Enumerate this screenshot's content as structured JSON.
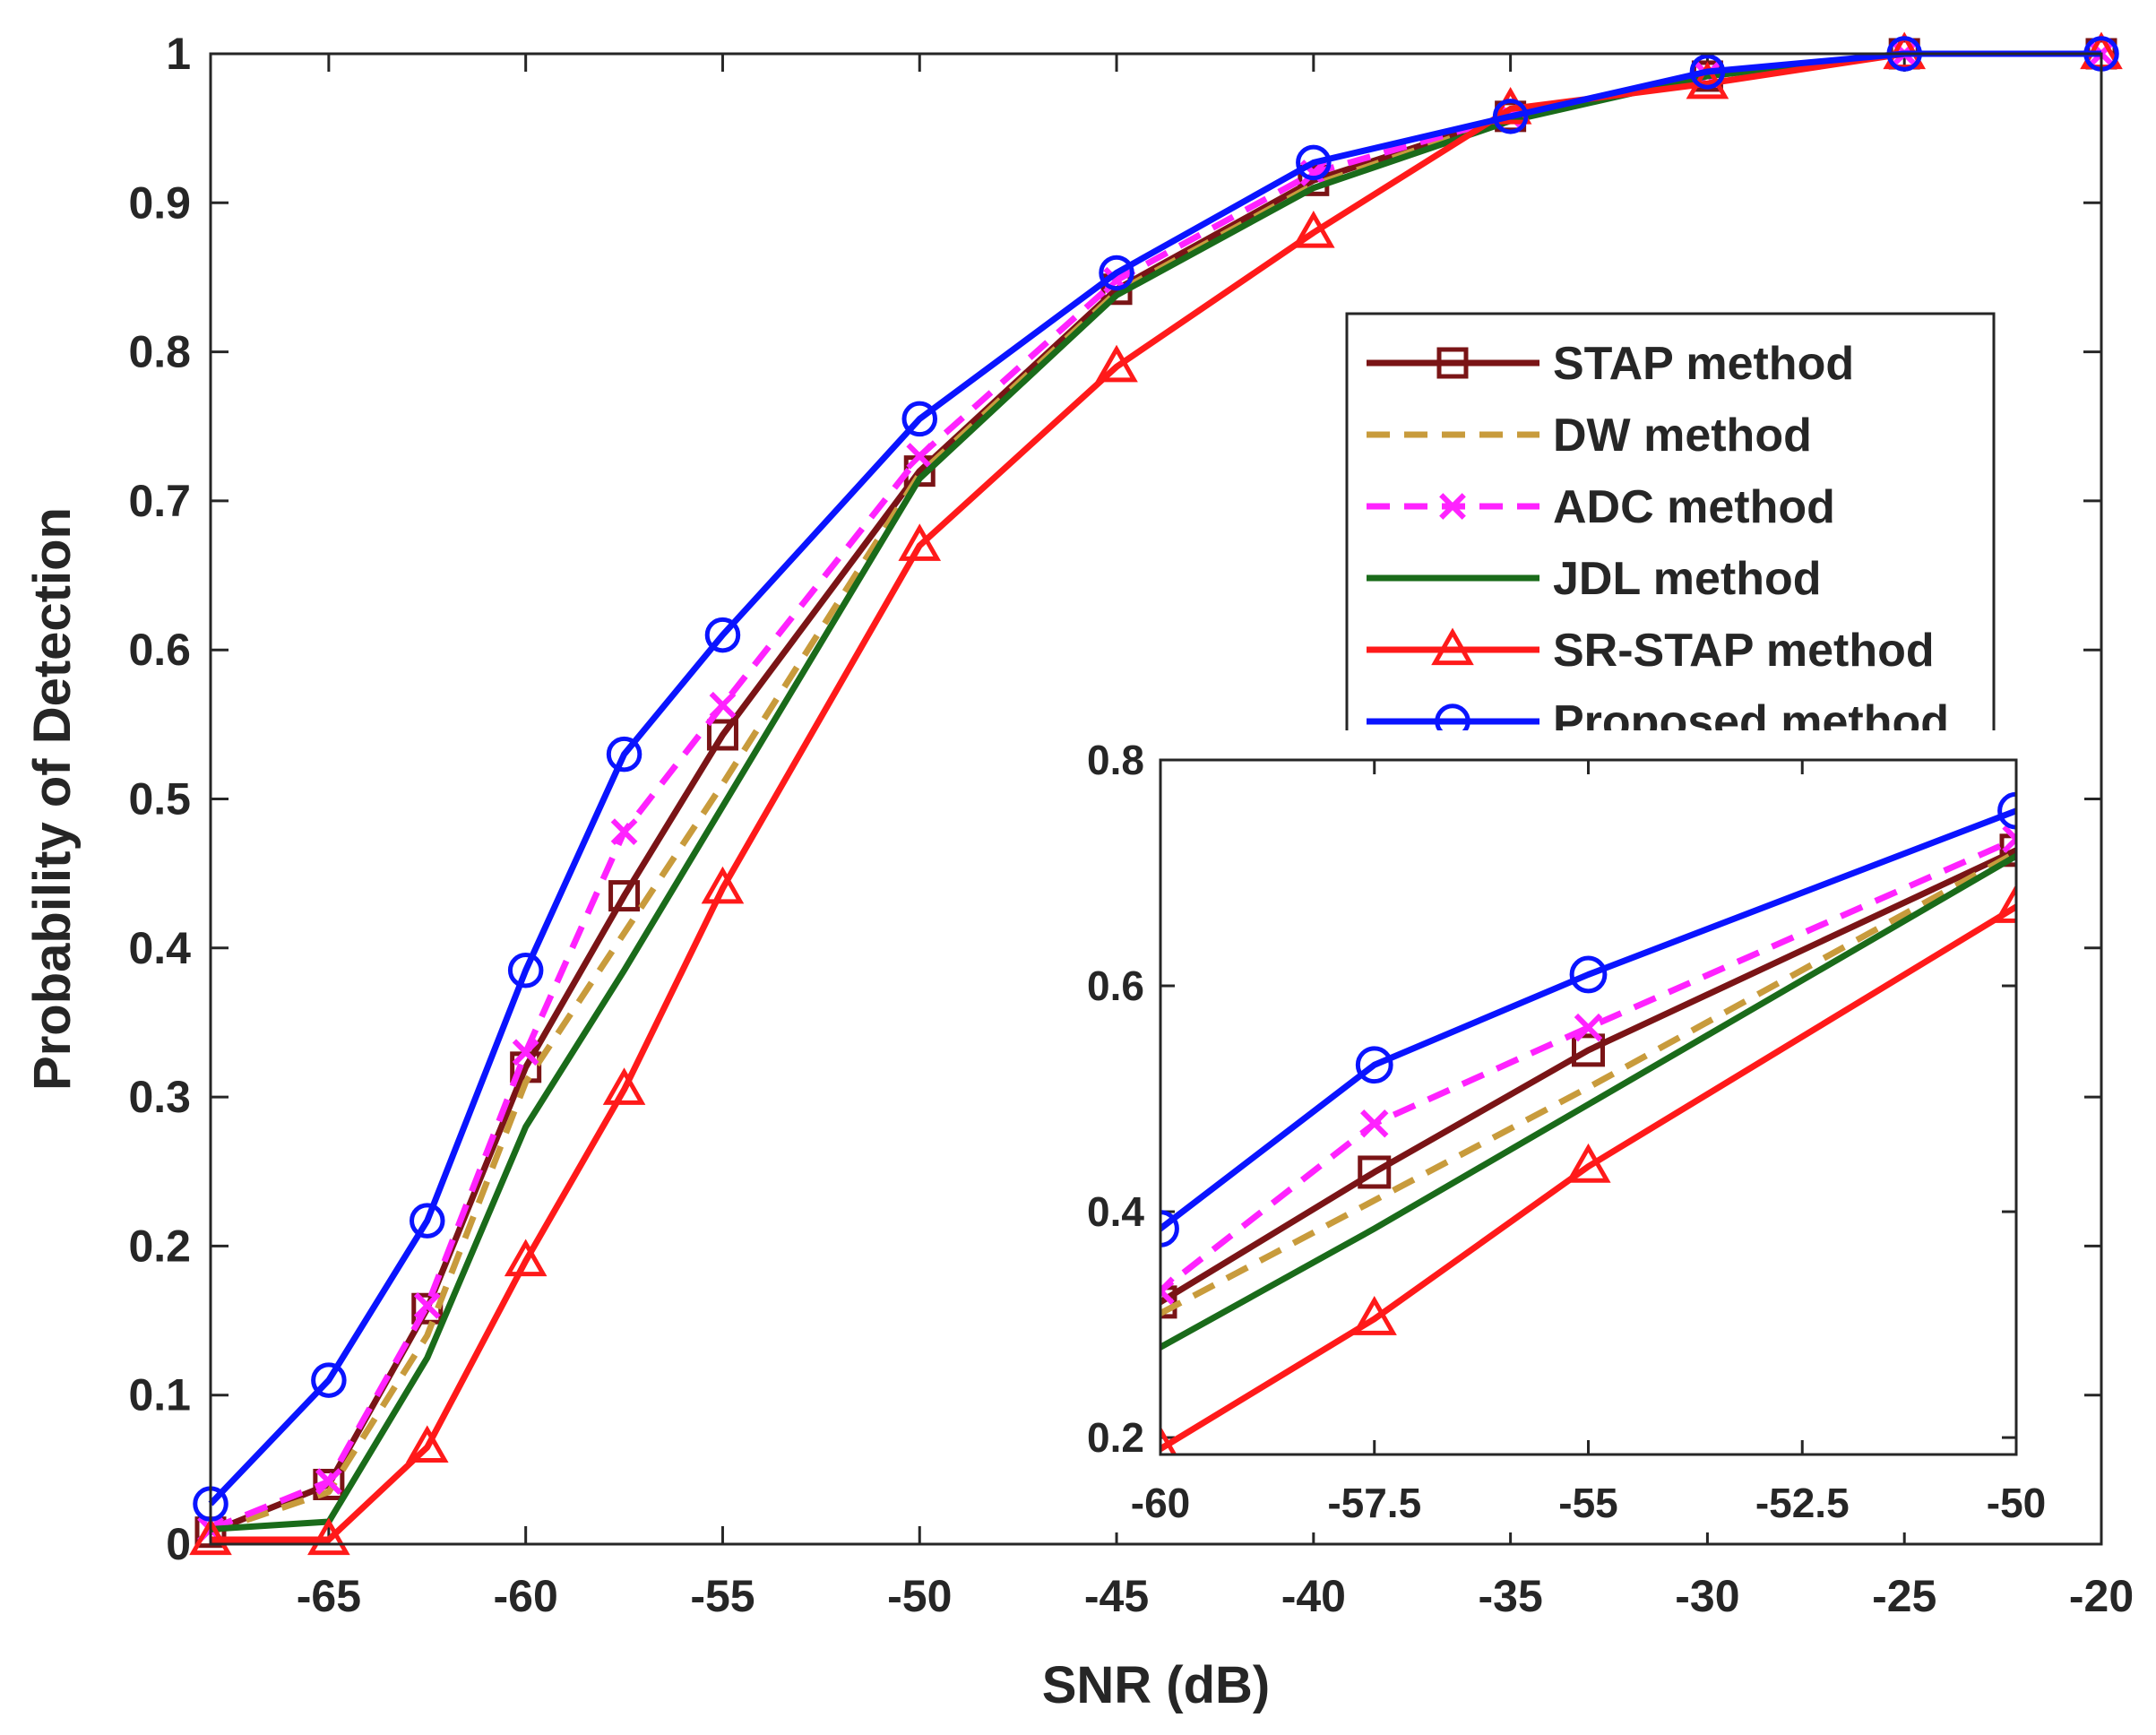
{
  "chart_data": {
    "type": "line",
    "title": "",
    "xlabel": "SNR (dB)",
    "ylabel": "Probability of Detection",
    "xlim": [
      -68,
      -20
    ],
    "ylim": [
      0,
      1
    ],
    "xticks": [
      -65,
      -60,
      -55,
      -50,
      -45,
      -40,
      -35,
      -30,
      -25,
      -20
    ],
    "xtick_labels": [
      "-65",
      "-60",
      "-55",
      "-50",
      "-45",
      "-40",
      "-35",
      "-30",
      "-25",
      "-20"
    ],
    "yticks": [
      0,
      0.1,
      0.2,
      0.3,
      0.4,
      0.5,
      0.6,
      0.7,
      0.8,
      0.9,
      1
    ],
    "ytick_labels": [
      "0",
      "0.1",
      "0.2",
      "0.3",
      "0.4",
      "0.5",
      "0.6",
      "0.7",
      "0.8",
      "0.9",
      "1"
    ],
    "legend_position": "right",
    "x": [
      -68,
      -65,
      -62.5,
      -60,
      -57.5,
      -55,
      -50,
      -45,
      -40,
      -35,
      -30,
      -25,
      -20
    ],
    "series": [
      {
        "name": "STAP method",
        "color": "#7a1416",
        "dash": "solid",
        "marker": "square",
        "values": [
          0.008,
          0.04,
          0.158,
          0.32,
          0.435,
          0.543,
          0.72,
          0.842,
          0.915,
          0.958,
          0.985,
          1.0,
          1.0
        ]
      },
      {
        "name": "DW method",
        "color": "#c89b3c",
        "dash": "dashed",
        "marker": "none",
        "values": [
          0.008,
          0.035,
          0.14,
          0.31,
          0.41,
          0.51,
          0.718,
          0.84,
          0.912,
          0.957,
          0.985,
          1.0,
          1.0
        ]
      },
      {
        "name": "ADC method",
        "color": "#ff22ff",
        "dash": "dashed",
        "marker": "x",
        "values": [
          0.01,
          0.042,
          0.16,
          0.33,
          0.478,
          0.563,
          0.73,
          0.848,
          0.92,
          0.958,
          0.986,
          1.0,
          1.0
        ]
      },
      {
        "name": "JDL method",
        "color": "#1a6b1a",
        "dash": "solid",
        "marker": "none",
        "values": [
          0.01,
          0.015,
          0.125,
          0.28,
          0.385,
          0.495,
          0.715,
          0.838,
          0.91,
          0.955,
          0.985,
          1.0,
          1.0
        ]
      },
      {
        "name": "SR-STAP method",
        "color": "#ff1a1a",
        "dash": "solid",
        "marker": "triangle",
        "values": [
          0.003,
          0.003,
          0.065,
          0.19,
          0.305,
          0.44,
          0.67,
          0.79,
          0.88,
          0.963,
          0.98,
          1.0,
          1.0
        ]
      },
      {
        "name": "Proposed method",
        "color": "#0a14ff",
        "dash": "solid",
        "marker": "circle",
        "values": [
          0.027,
          0.11,
          0.217,
          0.385,
          0.53,
          0.61,
          0.755,
          0.853,
          0.927,
          0.958,
          0.988,
          1.0,
          1.0
        ]
      }
    ],
    "inset": {
      "xlim": [
        -60,
        -50
      ],
      "ylim": [
        0.185,
        0.8
      ],
      "xticks": [
        -60,
        -57.5,
        -55,
        -52.5,
        -50
      ],
      "xtick_labels": [
        "-60",
        "-57.5",
        "-55",
        "-52.5",
        "-50"
      ],
      "yticks": [
        0.2,
        0.4,
        0.6,
        0.8
      ],
      "ytick_labels": [
        "0.2",
        "0.4",
        "0.6",
        "0.8"
      ]
    }
  }
}
